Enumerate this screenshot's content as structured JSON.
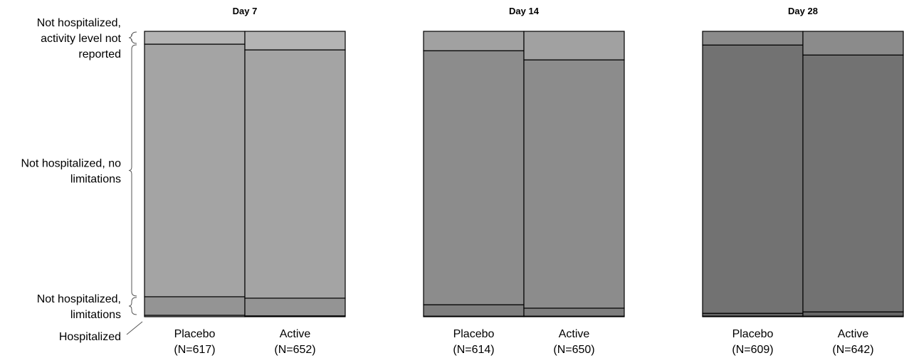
{
  "chart_data": {
    "type": "bar",
    "subtype": "stacked-100-percent",
    "row_labels": [
      [
        "Not hospitalized,",
        "activity level not",
        "reported"
      ],
      [
        "Not hospitalized, no",
        "limitations"
      ],
      [
        "Not hospitalized,",
        "limitations"
      ],
      [
        "Hospitalized"
      ]
    ],
    "categories": [
      "Placebo",
      "Active"
    ],
    "panels": [
      {
        "title": "Day 7",
        "groups": [
          {
            "label": "Placebo",
            "n_label": "(N=617)",
            "values": {
              "hospitalized": 0.5,
              "limitations": 6.5,
              "no_limitations": 88.5,
              "not_reported": 4.5
            }
          },
          {
            "label": "Active",
            "n_label": "(N=652)",
            "values": {
              "hospitalized": 0.3,
              "limitations": 6.2,
              "no_limitations": 87.0,
              "not_reported": 6.5
            }
          }
        ]
      },
      {
        "title": "Day 14",
        "groups": [
          {
            "label": "Placebo",
            "n_label": "(N=614)",
            "values": {
              "hospitalized": 0.2,
              "limitations": 4.0,
              "no_limitations": 89.0,
              "not_reported": 6.8
            }
          },
          {
            "label": "Active",
            "n_label": "(N=650)",
            "values": {
              "hospitalized": 0.2,
              "limitations": 2.8,
              "no_limitations": 87.0,
              "not_reported": 10.0
            }
          }
        ]
      },
      {
        "title": "Day 28",
        "groups": [
          {
            "label": "Placebo",
            "n_label": "(N=609)",
            "values": {
              "hospitalized": 0.2,
              "limitations": 1.0,
              "no_limitations": 94.0,
              "not_reported": 4.8
            }
          },
          {
            "label": "Active",
            "n_label": "(N=642)",
            "values": {
              "hospitalized": 0.2,
              "limitations": 1.5,
              "no_limitations": 90.0,
              "not_reported": 8.3
            }
          }
        ]
      }
    ],
    "ylim": [
      0,
      100
    ],
    "grid": false,
    "colors": {
      "panel_shades": [
        "#a4a4a4",
        "#8c8c8c",
        "#727272"
      ],
      "edge": "#000000"
    }
  }
}
